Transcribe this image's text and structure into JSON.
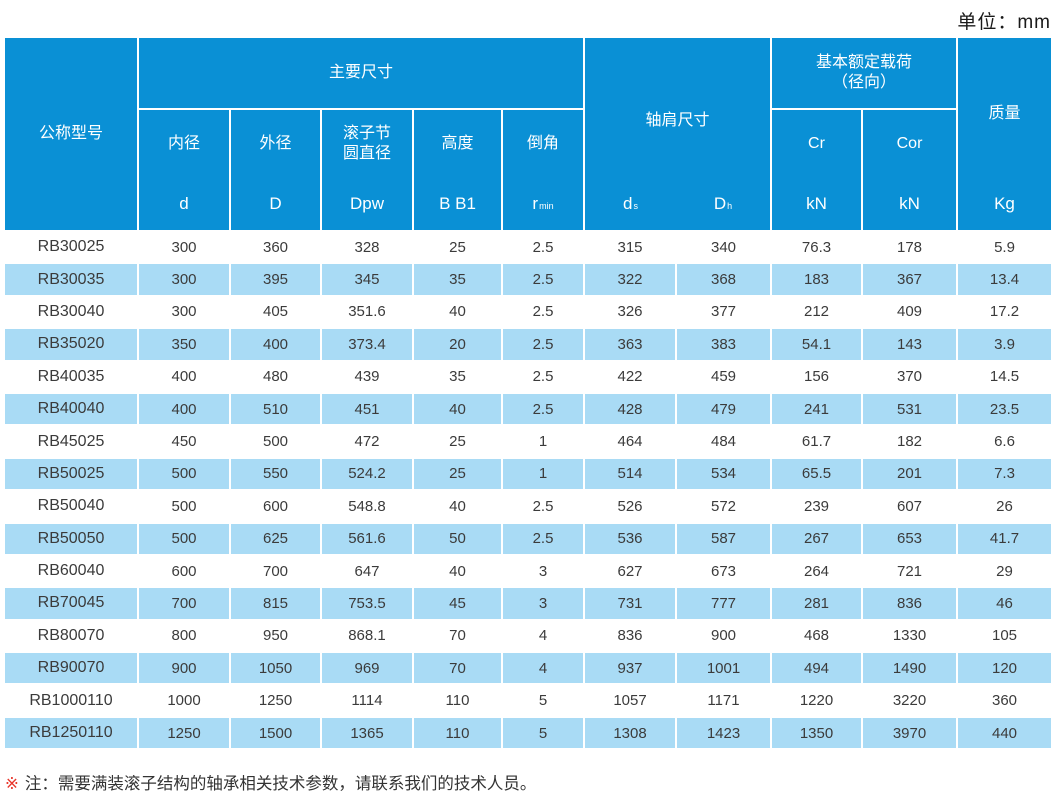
{
  "unit_label": "单位：mm",
  "colors": {
    "header_blue": "#0a90d5",
    "row_blue": "#a9dbf5",
    "row_white": "#ffffff",
    "note_red": "#e8372c",
    "text_dark": "#3b3b3b"
  },
  "header": {
    "model": "公称型号",
    "main_dims": "主要尺寸",
    "inner": {
      "name": "内径",
      "sym": "d"
    },
    "outer": {
      "name": "外径",
      "sym": "D"
    },
    "pitch": {
      "name": "滚子节圆直径",
      "sym": "Dpw"
    },
    "height": {
      "name": "高度",
      "sym": "B B1"
    },
    "chamfer": {
      "name": "倒角",
      "sym_base": "r",
      "sym_sub": "min"
    },
    "shoulder": {
      "name": "轴肩尺寸",
      "ds_base": "d",
      "ds_sub": "s",
      "dh_base": "D",
      "dh_sub": "h"
    },
    "load": {
      "name_line1": "基本额定载荷",
      "name_line2": "（径向）",
      "cr": "Cr",
      "cor": "Cor",
      "cr_unit": "kN",
      "cor_unit": "kN"
    },
    "mass": {
      "name": "质量",
      "unit": "Kg"
    }
  },
  "table": {
    "rows": [
      {
        "model": "RB30025",
        "values": [
          "300",
          "360",
          "328",
          "25",
          "2.5",
          "315",
          "340",
          "76.3",
          "178",
          "5.9"
        ]
      },
      {
        "model": "RB30035",
        "values": [
          "300",
          "395",
          "345",
          "35",
          "2.5",
          "322",
          "368",
          "183",
          "367",
          "13.4"
        ]
      },
      {
        "model": "RB30040",
        "values": [
          "300",
          "405",
          "351.6",
          "40",
          "2.5",
          "326",
          "377",
          "212",
          "409",
          "17.2"
        ]
      },
      {
        "model": "RB35020",
        "values": [
          "350",
          "400",
          "373.4",
          "20",
          "2.5",
          "363",
          "383",
          "54.1",
          "143",
          "3.9"
        ]
      },
      {
        "model": "RB40035",
        "values": [
          "400",
          "480",
          "439",
          "35",
          "2.5",
          "422",
          "459",
          "156",
          "370",
          "14.5"
        ]
      },
      {
        "model": "RB40040",
        "values": [
          "400",
          "510",
          "451",
          "40",
          "2.5",
          "428",
          "479",
          "241",
          "531",
          "23.5"
        ]
      },
      {
        "model": "RB45025",
        "values": [
          "450",
          "500",
          "472",
          "25",
          "1",
          "464",
          "484",
          "61.7",
          "182",
          "6.6"
        ]
      },
      {
        "model": "RB50025",
        "values": [
          "500",
          "550",
          "524.2",
          "25",
          "1",
          "514",
          "534",
          "65.5",
          "201",
          "7.3"
        ]
      },
      {
        "model": "RB50040",
        "values": [
          "500",
          "600",
          "548.8",
          "40",
          "2.5",
          "526",
          "572",
          "239",
          "607",
          "26"
        ]
      },
      {
        "model": "RB50050",
        "values": [
          "500",
          "625",
          "561.6",
          "50",
          "2.5",
          "536",
          "587",
          "267",
          "653",
          "41.7"
        ]
      },
      {
        "model": "RB60040",
        "values": [
          "600",
          "700",
          "647",
          "40",
          "3",
          "627",
          "673",
          "264",
          "721",
          "29"
        ]
      },
      {
        "model": "RB70045",
        "values": [
          "700",
          "815",
          "753.5",
          "45",
          "3",
          "731",
          "777",
          "281",
          "836",
          "46"
        ]
      },
      {
        "model": "RB80070",
        "values": [
          "800",
          "950",
          "868.1",
          "70",
          "4",
          "836",
          "900",
          "468",
          "1330",
          "105"
        ]
      },
      {
        "model": "RB90070",
        "values": [
          "900",
          "1050",
          "969",
          "70",
          "4",
          "937",
          "1001",
          "494",
          "1490",
          "120"
        ]
      },
      {
        "model": "RB1000110",
        "values": [
          "1000",
          "1250",
          "1114",
          "110",
          "5",
          "1057",
          "1171",
          "1220",
          "3220",
          "360"
        ]
      },
      {
        "model": "RB1250110",
        "values": [
          "1250",
          "1500",
          "1365",
          "110",
          "5",
          "1308",
          "1423",
          "1350",
          "3970",
          "440"
        ]
      }
    ]
  },
  "note": {
    "mark": "※",
    "text": "注：需要满装滚子结构的轴承相关技术参数，请联系我们的技术人员。"
  }
}
